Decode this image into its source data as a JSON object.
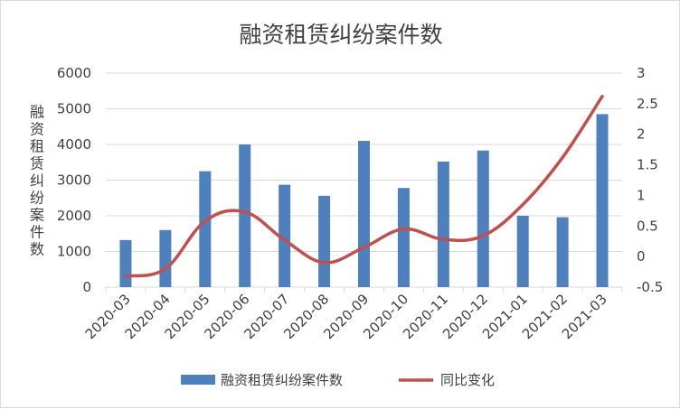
{
  "chart_data": {
    "type": "bar",
    "title": "融资租赁纠纷案件数",
    "ylabel": "融资租赁纠纷案件数",
    "y2label": "",
    "xlabel": "",
    "categories": [
      "2020-03",
      "2020-04",
      "2020-05",
      "2020-06",
      "2020-07",
      "2020-08",
      "2020-09",
      "2020-10",
      "2020-11",
      "2020-12",
      "2021-01",
      "2021-02",
      "2021-03"
    ],
    "series": [
      {
        "name": "融资租赁纠纷案件数",
        "type": "bar",
        "axis": "left",
        "values": [
          1320,
          1600,
          3250,
          4000,
          2870,
          2560,
          4100,
          2780,
          3520,
          3830,
          2000,
          1960,
          4850
        ]
      },
      {
        "name": "同比变化",
        "type": "line",
        "axis": "right",
        "values": [
          -0.32,
          -0.2,
          0.58,
          0.73,
          0.27,
          -0.1,
          0.15,
          0.45,
          0.28,
          0.34,
          0.85,
          1.62,
          2.62
        ]
      }
    ],
    "ylim": [
      0,
      6000
    ],
    "y_ticks": [
      "0",
      "1000",
      "2000",
      "3000",
      "4000",
      "5000",
      "6000"
    ],
    "y2lim": [
      -0.5,
      3
    ],
    "y2_ticks": [
      "-0.5",
      "0",
      "0.5",
      "1",
      "1.5",
      "2",
      "2.5",
      "3"
    ],
    "grid": true,
    "legend_position": "bottom",
    "colors": {
      "bar": "#4e80bd",
      "line": "#c0504d",
      "grid": "#d9d9d9",
      "text": "#404040"
    }
  }
}
